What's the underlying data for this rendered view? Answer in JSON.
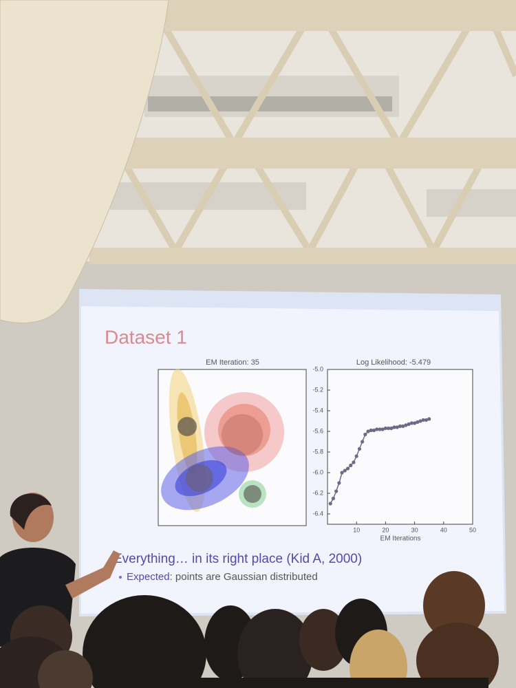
{
  "slide": {
    "title": "Dataset 1",
    "left_plot_title": "EM Iteration: 35",
    "caption": "Everything… in its right place (Kid A, 2000)",
    "bullet": {
      "emphasis": "Expected",
      "text": ": points are Gaussian distributed"
    }
  },
  "chart_data": {
    "type": "line",
    "title": "Log Likelihood: -5.479",
    "xlabel": "EM Iterations",
    "x": [
      1,
      2,
      3,
      4,
      5,
      6,
      7,
      8,
      9,
      10,
      11,
      12,
      13,
      14,
      15,
      16,
      17,
      18,
      19,
      20,
      21,
      22,
      23,
      24,
      25,
      26,
      27,
      28,
      29,
      30,
      31,
      32,
      33,
      34,
      35
    ],
    "series": [
      {
        "color": "#6e6a86",
        "values": [
          -6.3,
          -6.25,
          -6.18,
          -6.1,
          -6.0,
          -5.98,
          -5.96,
          -5.93,
          -5.9,
          -5.84,
          -5.77,
          -5.7,
          -5.63,
          -5.6,
          -5.59,
          -5.59,
          -5.58,
          -5.58,
          -5.58,
          -5.57,
          -5.57,
          -5.57,
          -5.56,
          -5.56,
          -5.55,
          -5.55,
          -5.54,
          -5.53,
          -5.52,
          -5.52,
          -5.51,
          -5.5,
          -5.49,
          -5.49,
          -5.48
        ]
      }
    ],
    "xlim": [
      0,
      50
    ],
    "xticks": [
      10,
      20,
      30,
      40,
      50
    ],
    "ylim": [
      -6.5,
      -5.0
    ],
    "yticks": [
      {
        "value": -5.0,
        "label": "-5.0"
      },
      -5.2,
      -5.4,
      -5.6,
      -5.8,
      {
        "value": -6.0,
        "label": "-6.0"
      },
      -6.2,
      -6.4
    ]
  }
}
